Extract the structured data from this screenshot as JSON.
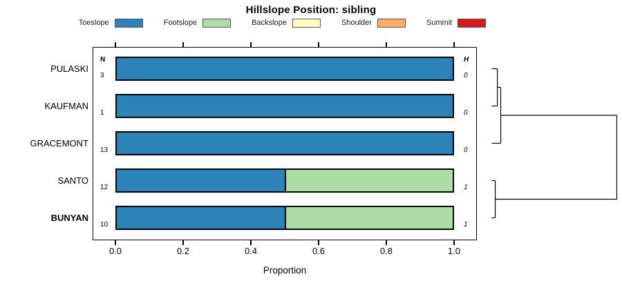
{
  "chart_data": {
    "type": "bar",
    "orientation": "horizontal",
    "stacked": true,
    "title": "Hillslope Position: sibling",
    "xlabel": "Proportion",
    "xlim": [
      0,
      1
    ],
    "xtick_labels": [
      "0.0",
      "0.2",
      "0.4",
      "0.6",
      "0.8",
      "1.0"
    ],
    "columns": {
      "n_header": "N",
      "h_header": "H"
    },
    "legend": [
      {
        "label": "Toeslope",
        "color": "#2B83BA"
      },
      {
        "label": "Footslope",
        "color": "#ABDDA4"
      },
      {
        "label": "Backslope",
        "color": "#FFFFBF"
      },
      {
        "label": "Shoulder",
        "color": "#FDAE61"
      },
      {
        "label": "Summit",
        "color": "#D7191C"
      }
    ],
    "rows": [
      {
        "label": "PULASKI",
        "n": "3",
        "h": "0",
        "bold": false,
        "values": [
          1,
          0,
          0,
          0,
          0
        ]
      },
      {
        "label": "KAUFMAN",
        "n": "1",
        "h": "0",
        "bold": false,
        "values": [
          1,
          0,
          0,
          0,
          0
        ]
      },
      {
        "label": "GRACEMONT",
        "n": "13",
        "h": "0",
        "bold": false,
        "values": [
          1,
          0,
          0,
          0,
          0
        ]
      },
      {
        "label": "SANTO",
        "n": "12",
        "h": "1",
        "bold": false,
        "values": [
          0.5,
          0.5,
          0,
          0,
          0
        ]
      },
      {
        "label": "BUNYAN",
        "n": "10",
        "h": "1",
        "bold": true,
        "values": [
          0.5,
          0.5,
          0,
          0,
          0
        ]
      }
    ],
    "dendrogram": {
      "position": "right",
      "merges": [
        {
          "a": "leaf0",
          "b": "leaf1",
          "height": 0.045
        },
        {
          "a": "node0",
          "b": "leaf2",
          "height": 0.072
        },
        {
          "a": "leaf3",
          "b": "leaf4",
          "height": 0.028
        },
        {
          "a": "node1",
          "b": "node2",
          "height": 1.0
        }
      ]
    }
  }
}
